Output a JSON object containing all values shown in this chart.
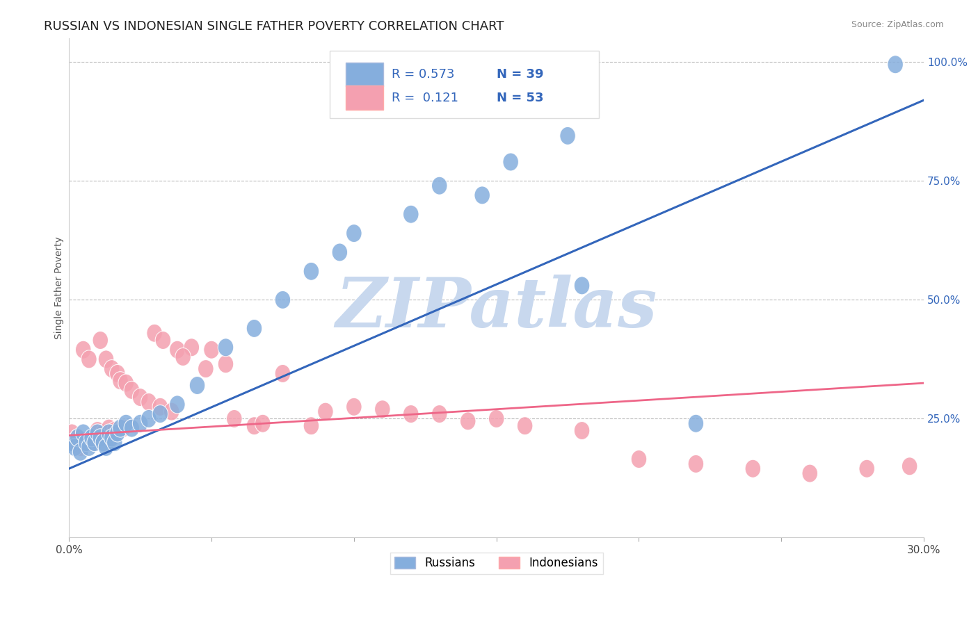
{
  "title": "RUSSIAN VS INDONESIAN SINGLE FATHER POVERTY CORRELATION CHART",
  "source_text": "Source: ZipAtlas.com",
  "ylabel": "Single Father Poverty",
  "xlim": [
    0.0,
    0.3
  ],
  "ylim": [
    0.0,
    1.05
  ],
  "xticks": [
    0.0,
    0.05,
    0.1,
    0.15,
    0.2,
    0.25,
    0.3
  ],
  "xticklabels": [
    "0.0%",
    "",
    "",
    "",
    "",
    "",
    "30.0%"
  ],
  "ytick_positions": [
    0.25,
    0.5,
    0.75,
    1.0
  ],
  "yticklabels": [
    "25.0%",
    "50.0%",
    "75.0%",
    "100.0%"
  ],
  "russian_R": 0.573,
  "russian_N": 39,
  "indonesian_R": 0.121,
  "indonesian_N": 53,
  "russian_color": "#85AEDD",
  "indonesian_color": "#F4A0B0",
  "russian_line_color": "#3366BB",
  "indonesian_line_color": "#EE6688",
  "watermark_text": "ZIPatlas",
  "watermark_color": "#C8D8EE",
  "background_color": "#FFFFFF",
  "grid_color": "#BBBBBB",
  "title_fontsize": 13,
  "axis_label_fontsize": 10,
  "russian_line_y0": 0.145,
  "russian_line_y1": 0.92,
  "indonesian_line_y0": 0.215,
  "indonesian_line_y1": 0.325,
  "russians_x": [
    0.001,
    0.002,
    0.003,
    0.004,
    0.005,
    0.006,
    0.007,
    0.008,
    0.009,
    0.01,
    0.011,
    0.012,
    0.013,
    0.014,
    0.015,
    0.016,
    0.017,
    0.018,
    0.02,
    0.022,
    0.025,
    0.028,
    0.032,
    0.038,
    0.045,
    0.055,
    0.1,
    0.13,
    0.155,
    0.175,
    0.065,
    0.075,
    0.085,
    0.095,
    0.12,
    0.145,
    0.18,
    0.22,
    0.29
  ],
  "russians_y": [
    0.2,
    0.19,
    0.21,
    0.18,
    0.22,
    0.2,
    0.19,
    0.21,
    0.2,
    0.22,
    0.21,
    0.2,
    0.19,
    0.22,
    0.21,
    0.2,
    0.22,
    0.23,
    0.24,
    0.23,
    0.24,
    0.25,
    0.26,
    0.28,
    0.32,
    0.4,
    0.64,
    0.74,
    0.79,
    0.845,
    0.44,
    0.5,
    0.56,
    0.6,
    0.68,
    0.72,
    0.53,
    0.24,
    0.995
  ],
  "indonesians_x": [
    0.001,
    0.002,
    0.003,
    0.004,
    0.005,
    0.006,
    0.007,
    0.008,
    0.009,
    0.01,
    0.011,
    0.012,
    0.013,
    0.014,
    0.015,
    0.016,
    0.017,
    0.018,
    0.019,
    0.02,
    0.022,
    0.025,
    0.028,
    0.03,
    0.033,
    0.038,
    0.043,
    0.05,
    0.055,
    0.065,
    0.075,
    0.085,
    0.1,
    0.12,
    0.14,
    0.16,
    0.18,
    0.2,
    0.22,
    0.24,
    0.26,
    0.28,
    0.295,
    0.032,
    0.036,
    0.04,
    0.048,
    0.058,
    0.068,
    0.09,
    0.11,
    0.13,
    0.15
  ],
  "indonesians_y": [
    0.22,
    0.2,
    0.21,
    0.19,
    0.395,
    0.2,
    0.375,
    0.21,
    0.2,
    0.225,
    0.415,
    0.22,
    0.375,
    0.23,
    0.355,
    0.225,
    0.345,
    0.33,
    0.23,
    0.325,
    0.31,
    0.295,
    0.285,
    0.43,
    0.415,
    0.395,
    0.4,
    0.395,
    0.365,
    0.235,
    0.345,
    0.235,
    0.275,
    0.26,
    0.245,
    0.235,
    0.225,
    0.165,
    0.155,
    0.145,
    0.135,
    0.145,
    0.15,
    0.275,
    0.265,
    0.38,
    0.355,
    0.25,
    0.24,
    0.265,
    0.27,
    0.26,
    0.25
  ]
}
